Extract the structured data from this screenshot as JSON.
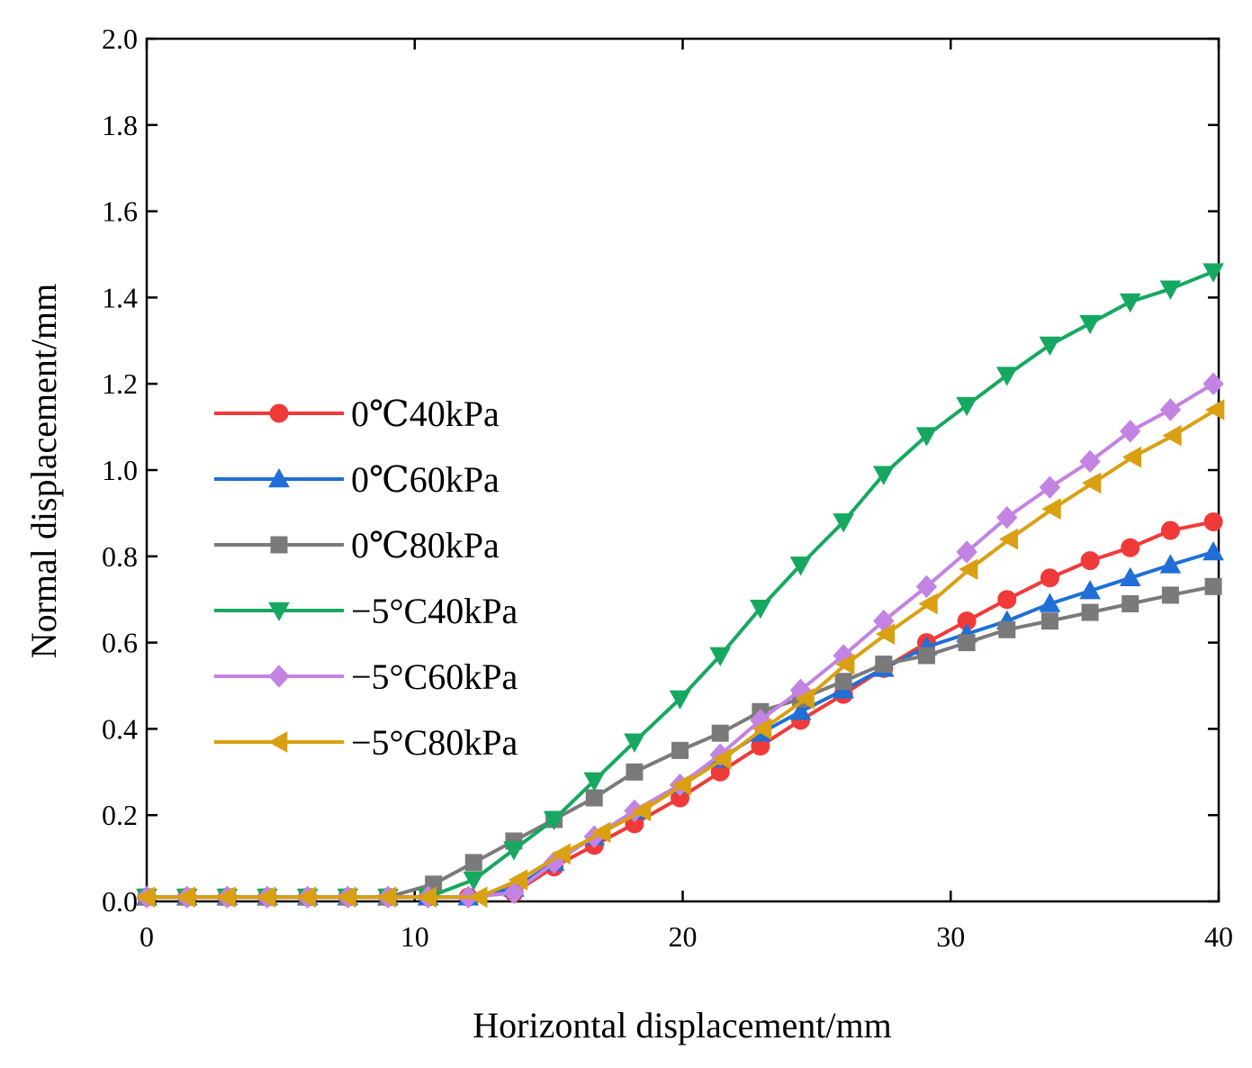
{
  "chart_data": {
    "type": "line",
    "title": "",
    "xlabel": "Horizontal displacement/mm",
    "ylabel": "Normal displacement/mm",
    "xlim": [
      0,
      40
    ],
    "ylim": [
      0,
      2.0
    ],
    "xticks": [
      "0",
      "10",
      "20",
      "30",
      "40"
    ],
    "yticks": [
      "0.0",
      "0.2",
      "0.4",
      "0.6",
      "0.8",
      "1.0",
      "1.2",
      "1.4",
      "1.6",
      "1.8",
      "2.0"
    ],
    "grid": false,
    "legend_position": "center-left",
    "series": [
      {
        "name": "0℃ 40kPa",
        "label": "0℃40kPa",
        "color": "#f03a3a",
        "marker": "circle",
        "points": [
          [
            0,
            0.01
          ],
          [
            1.5,
            0.01
          ],
          [
            3.0,
            0.01
          ],
          [
            4.5,
            0.01
          ],
          [
            6.0,
            0.01
          ],
          [
            7.5,
            0.01
          ],
          [
            9.0,
            0.01
          ],
          [
            10.5,
            0.01
          ],
          [
            12.0,
            0.01
          ],
          [
            13.7,
            0.02
          ],
          [
            15.2,
            0.08
          ],
          [
            16.7,
            0.13
          ],
          [
            18.2,
            0.18
          ],
          [
            19.9,
            0.24
          ],
          [
            21.4,
            0.3
          ],
          [
            22.9,
            0.36
          ],
          [
            24.4,
            0.42
          ],
          [
            26.0,
            0.48
          ],
          [
            27.5,
            0.54
          ],
          [
            29.1,
            0.6
          ],
          [
            30.6,
            0.65
          ],
          [
            32.1,
            0.7
          ],
          [
            33.7,
            0.75
          ],
          [
            35.2,
            0.79
          ],
          [
            36.7,
            0.82
          ],
          [
            38.2,
            0.86
          ],
          [
            39.8,
            0.88
          ]
        ]
      },
      {
        "name": "0℃ 60kPa",
        "label": "0℃60kPa",
        "color": "#1f6fd6",
        "marker": "triangle-up",
        "points": [
          [
            0,
            0.01
          ],
          [
            1.5,
            0.01
          ],
          [
            3.0,
            0.01
          ],
          [
            4.5,
            0.01
          ],
          [
            6.0,
            0.01
          ],
          [
            7.5,
            0.01
          ],
          [
            9.0,
            0.01
          ],
          [
            10.5,
            0.01
          ],
          [
            12.0,
            0.01
          ],
          [
            13.7,
            0.03
          ],
          [
            15.2,
            0.09
          ],
          [
            16.7,
            0.15
          ],
          [
            18.2,
            0.21
          ],
          [
            19.9,
            0.27
          ],
          [
            21.4,
            0.33
          ],
          [
            22.9,
            0.39
          ],
          [
            24.4,
            0.44
          ],
          [
            26.0,
            0.49
          ],
          [
            27.5,
            0.54
          ],
          [
            29.1,
            0.59
          ],
          [
            30.6,
            0.62
          ],
          [
            32.1,
            0.65
          ],
          [
            33.7,
            0.69
          ],
          [
            35.2,
            0.72
          ],
          [
            36.7,
            0.75
          ],
          [
            38.2,
            0.78
          ],
          [
            39.8,
            0.81
          ]
        ]
      },
      {
        "name": "0℃ 80kPa",
        "label": "0℃80kPa",
        "color": "#7a7a7a",
        "marker": "square",
        "points": [
          [
            0,
            0.01
          ],
          [
            1.5,
            0.01
          ],
          [
            3.0,
            0.01
          ],
          [
            4.5,
            0.01
          ],
          [
            6.0,
            0.01
          ],
          [
            7.5,
            0.01
          ],
          [
            9.0,
            0.01
          ],
          [
            10.7,
            0.04
          ],
          [
            12.2,
            0.09
          ],
          [
            13.7,
            0.14
          ],
          [
            15.2,
            0.19
          ],
          [
            16.7,
            0.24
          ],
          [
            18.2,
            0.3
          ],
          [
            19.9,
            0.35
          ],
          [
            21.4,
            0.39
          ],
          [
            22.9,
            0.44
          ],
          [
            24.4,
            0.47
          ],
          [
            26.0,
            0.51
          ],
          [
            27.5,
            0.55
          ],
          [
            29.1,
            0.57
          ],
          [
            30.6,
            0.6
          ],
          [
            32.1,
            0.63
          ],
          [
            33.7,
            0.65
          ],
          [
            35.2,
            0.67
          ],
          [
            36.7,
            0.69
          ],
          [
            38.2,
            0.71
          ],
          [
            39.8,
            0.73
          ]
        ]
      },
      {
        "name": "−5°C 40kPa",
        "label": "−5°C40kPa",
        "color": "#16a860",
        "marker": "triangle-down",
        "points": [
          [
            0,
            0.01
          ],
          [
            1.5,
            0.01
          ],
          [
            3.0,
            0.01
          ],
          [
            4.5,
            0.01
          ],
          [
            6.0,
            0.01
          ],
          [
            7.5,
            0.01
          ],
          [
            9.0,
            0.01
          ],
          [
            10.5,
            0.01
          ],
          [
            12.2,
            0.05
          ],
          [
            13.7,
            0.12
          ],
          [
            15.2,
            0.19
          ],
          [
            16.7,
            0.28
          ],
          [
            18.2,
            0.37
          ],
          [
            19.9,
            0.47
          ],
          [
            21.4,
            0.57
          ],
          [
            22.9,
            0.68
          ],
          [
            24.4,
            0.78
          ],
          [
            26.0,
            0.88
          ],
          [
            27.5,
            0.99
          ],
          [
            29.1,
            1.08
          ],
          [
            30.6,
            1.15
          ],
          [
            32.1,
            1.22
          ],
          [
            33.7,
            1.29
          ],
          [
            35.2,
            1.34
          ],
          [
            36.7,
            1.39
          ],
          [
            38.2,
            1.42
          ],
          [
            39.8,
            1.46
          ]
        ]
      },
      {
        "name": "−5°C 60kPa",
        "label": "−5°C60kPa",
        "color": "#c383e3",
        "marker": "diamond",
        "points": [
          [
            0,
            0.01
          ],
          [
            1.5,
            0.01
          ],
          [
            3.0,
            0.01
          ],
          [
            4.5,
            0.01
          ],
          [
            6.0,
            0.01
          ],
          [
            7.5,
            0.01
          ],
          [
            9.0,
            0.01
          ],
          [
            10.5,
            0.01
          ],
          [
            12.0,
            0.01
          ],
          [
            13.7,
            0.02
          ],
          [
            15.2,
            0.09
          ],
          [
            16.7,
            0.15
          ],
          [
            18.2,
            0.21
          ],
          [
            19.9,
            0.27
          ],
          [
            21.4,
            0.34
          ],
          [
            22.9,
            0.42
          ],
          [
            24.4,
            0.49
          ],
          [
            26.0,
            0.57
          ],
          [
            27.5,
            0.65
          ],
          [
            29.1,
            0.73
          ],
          [
            30.6,
            0.81
          ],
          [
            32.1,
            0.89
          ],
          [
            33.7,
            0.96
          ],
          [
            35.2,
            1.02
          ],
          [
            36.7,
            1.09
          ],
          [
            38.2,
            1.14
          ],
          [
            39.8,
            1.2
          ]
        ]
      },
      {
        "name": "−5°C 80kPa",
        "label": "−5°C80kPa",
        "color": "#d9a012",
        "marker": "triangle-left",
        "points": [
          [
            0,
            0.01
          ],
          [
            1.5,
            0.01
          ],
          [
            3.0,
            0.01
          ],
          [
            4.5,
            0.01
          ],
          [
            6.0,
            0.01
          ],
          [
            7.5,
            0.01
          ],
          [
            9.0,
            0.01
          ],
          [
            10.5,
            0.01
          ],
          [
            12.4,
            0.01
          ],
          [
            13.9,
            0.05
          ],
          [
            15.5,
            0.11
          ],
          [
            17.0,
            0.16
          ],
          [
            18.5,
            0.21
          ],
          [
            20.0,
            0.27
          ],
          [
            21.5,
            0.33
          ],
          [
            23.0,
            0.4
          ],
          [
            24.6,
            0.47
          ],
          [
            26.1,
            0.55
          ],
          [
            27.6,
            0.62
          ],
          [
            29.2,
            0.69
          ],
          [
            30.7,
            0.77
          ],
          [
            32.2,
            0.84
          ],
          [
            33.8,
            0.91
          ],
          [
            35.3,
            0.97
          ],
          [
            36.8,
            1.03
          ],
          [
            38.3,
            1.08
          ],
          [
            39.9,
            1.14
          ]
        ]
      }
    ]
  }
}
